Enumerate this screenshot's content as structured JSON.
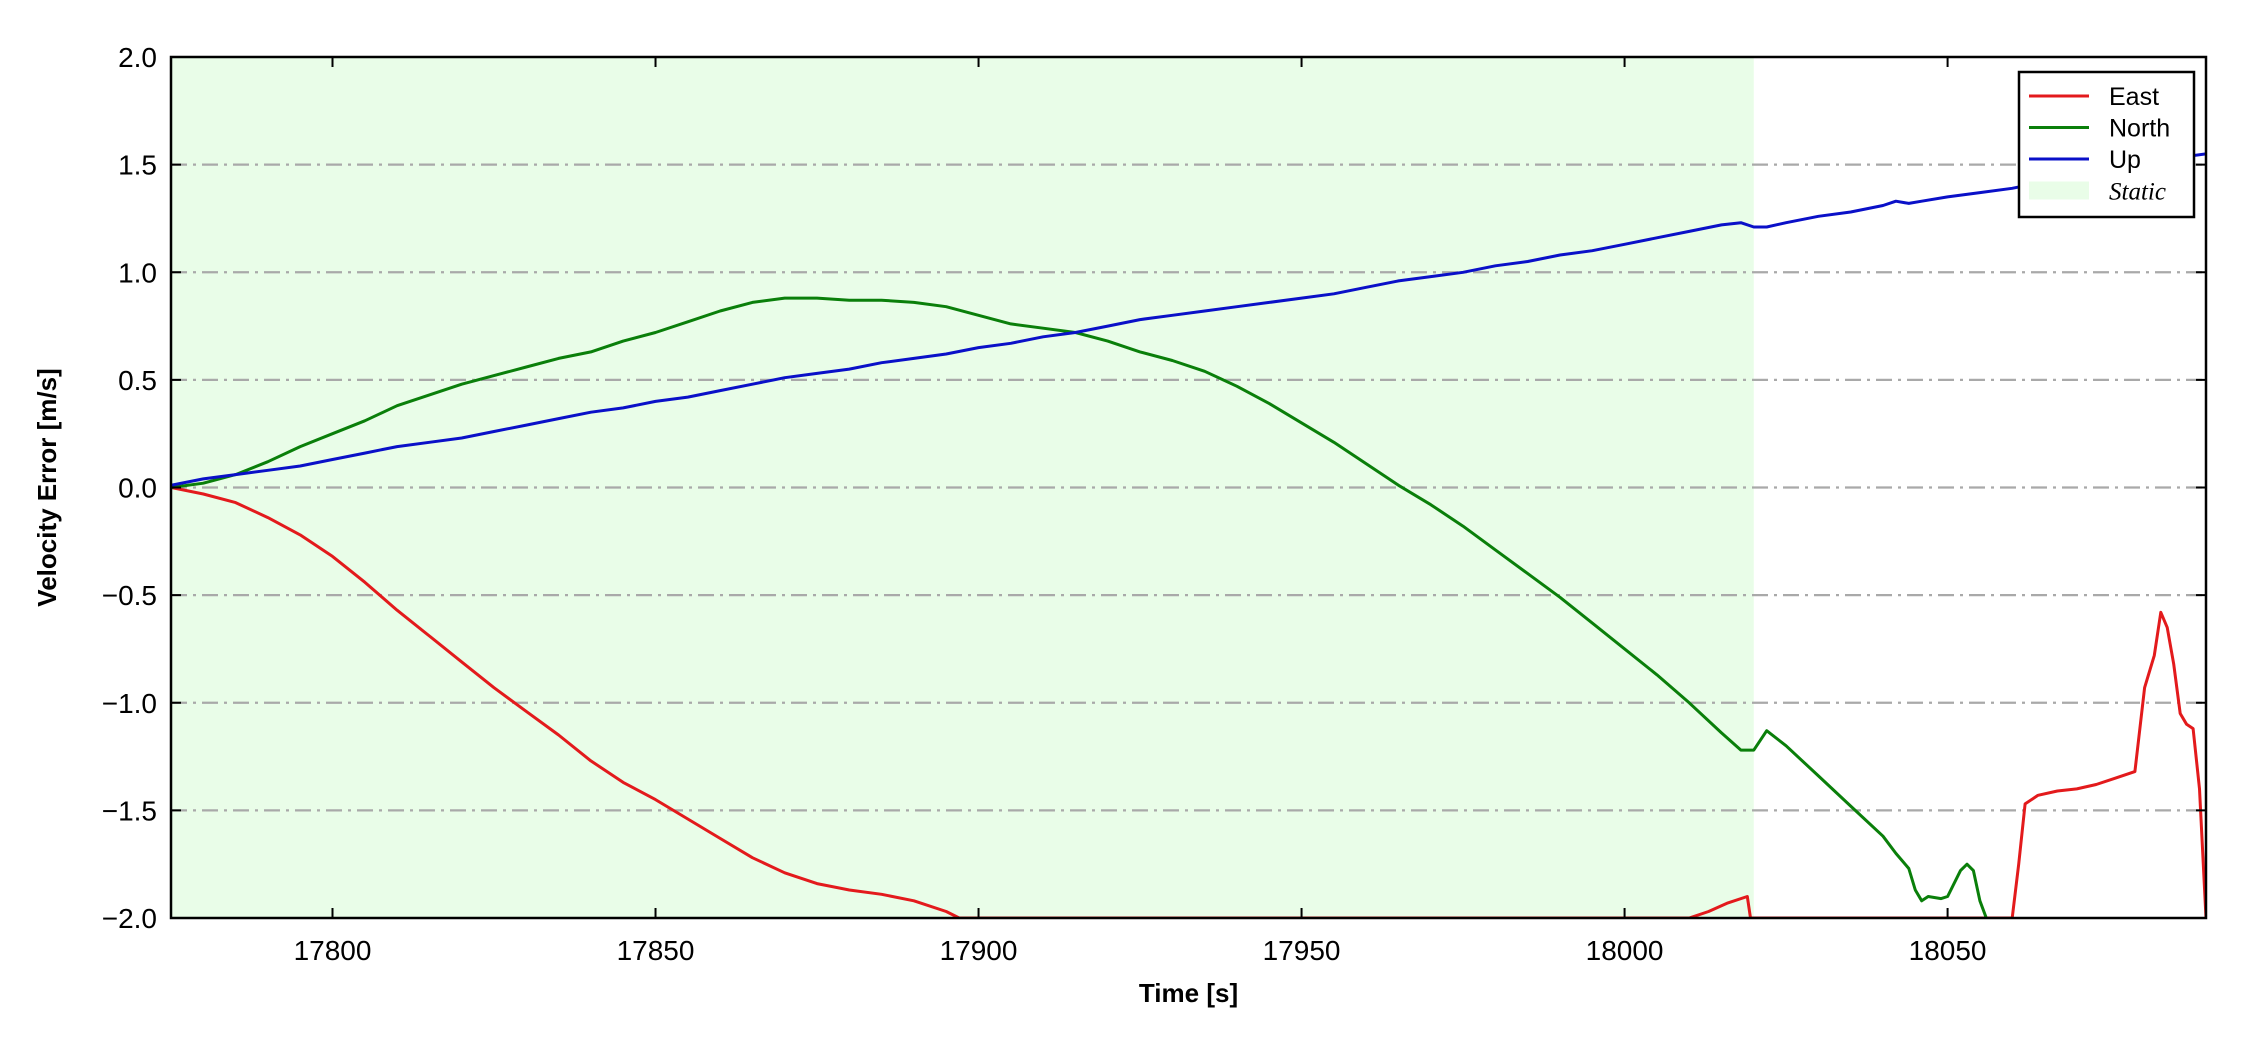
{
  "chart_data": {
    "type": "line",
    "title": "",
    "xlabel": "Time [s]",
    "ylabel": "Velocity Error [m/s]",
    "xlim": [
      17775,
      18090
    ],
    "ylim": [
      -2.0,
      2.0
    ],
    "xticks": [
      17800,
      17850,
      17900,
      17950,
      18000,
      18050
    ],
    "yticks": [
      -2.0,
      -1.5,
      -1.0,
      -0.5,
      0.0,
      0.5,
      1.0,
      1.5,
      2.0
    ],
    "ytick_labels": [
      "−2.0",
      "−1.5",
      "−1.0",
      "−0.5",
      "0.0",
      "0.5",
      "1.0",
      "1.5",
      "2.0"
    ],
    "grid": "horizontal dash-dot",
    "legend_position": "top-right",
    "static_region": {
      "label": "Static",
      "x_start": 17775,
      "x_end": 18020,
      "color": "#e9fde8"
    },
    "series": [
      {
        "name": "East",
        "color": "#e31a1c",
        "points": [
          [
            17775,
            0.0
          ],
          [
            17780,
            -0.03
          ],
          [
            17785,
            -0.07
          ],
          [
            17790,
            -0.14
          ],
          [
            17795,
            -0.22
          ],
          [
            17800,
            -0.32
          ],
          [
            17805,
            -0.44
          ],
          [
            17810,
            -0.57
          ],
          [
            17815,
            -0.69
          ],
          [
            17820,
            -0.81
          ],
          [
            17825,
            -0.93
          ],
          [
            17830,
            -1.04
          ],
          [
            17835,
            -1.15
          ],
          [
            17840,
            -1.27
          ],
          [
            17845,
            -1.37
          ],
          [
            17850,
            -1.45
          ],
          [
            17855,
            -1.54
          ],
          [
            17860,
            -1.63
          ],
          [
            17865,
            -1.72
          ],
          [
            17870,
            -1.79
          ],
          [
            17875,
            -1.84
          ],
          [
            17880,
            -1.87
          ],
          [
            17885,
            -1.89
          ],
          [
            17890,
            -1.92
          ],
          [
            17895,
            -1.97
          ],
          [
            17897,
            -2.0
          ],
          [
            18010,
            -2.0
          ],
          [
            18013,
            -1.97
          ],
          [
            18016,
            -1.93
          ],
          [
            18019,
            -1.9
          ],
          [
            18019.5,
            -2.0
          ],
          [
            18060,
            -2.0
          ],
          [
            18061,
            -1.75
          ],
          [
            18062,
            -1.47
          ],
          [
            18064,
            -1.43
          ],
          [
            18067,
            -1.41
          ],
          [
            18070,
            -1.4
          ],
          [
            18073,
            -1.38
          ],
          [
            18076,
            -1.35
          ],
          [
            18079,
            -1.32
          ],
          [
            18080.5,
            -0.93
          ],
          [
            18082,
            -0.78
          ],
          [
            18083,
            -0.58
          ],
          [
            18084,
            -0.65
          ],
          [
            18085,
            -0.82
          ],
          [
            18086,
            -1.05
          ],
          [
            18087,
            -1.1
          ],
          [
            18088,
            -1.12
          ],
          [
            18089,
            -1.4
          ],
          [
            18090,
            -2.0
          ]
        ]
      },
      {
        "name": "North",
        "color": "#0a7f0a",
        "points": [
          [
            17775,
            0.0
          ],
          [
            17780,
            0.02
          ],
          [
            17785,
            0.06
          ],
          [
            17790,
            0.12
          ],
          [
            17795,
            0.19
          ],
          [
            17800,
            0.25
          ],
          [
            17805,
            0.31
          ],
          [
            17810,
            0.38
          ],
          [
            17815,
            0.43
          ],
          [
            17820,
            0.48
          ],
          [
            17825,
            0.52
          ],
          [
            17830,
            0.56
          ],
          [
            17835,
            0.6
          ],
          [
            17840,
            0.63
          ],
          [
            17845,
            0.68
          ],
          [
            17850,
            0.72
          ],
          [
            17855,
            0.77
          ],
          [
            17860,
            0.82
          ],
          [
            17865,
            0.86
          ],
          [
            17870,
            0.88
          ],
          [
            17875,
            0.88
          ],
          [
            17880,
            0.87
          ],
          [
            17885,
            0.87
          ],
          [
            17890,
            0.86
          ],
          [
            17895,
            0.84
          ],
          [
            17900,
            0.8
          ],
          [
            17905,
            0.76
          ],
          [
            17910,
            0.74
          ],
          [
            17915,
            0.72
          ],
          [
            17920,
            0.68
          ],
          [
            17925,
            0.63
          ],
          [
            17930,
            0.59
          ],
          [
            17935,
            0.54
          ],
          [
            17940,
            0.47
          ],
          [
            17945,
            0.39
          ],
          [
            17950,
            0.3
          ],
          [
            17955,
            0.21
          ],
          [
            17960,
            0.11
          ],
          [
            17965,
            0.01
          ],
          [
            17970,
            -0.08
          ],
          [
            17975,
            -0.18
          ],
          [
            17980,
            -0.29
          ],
          [
            17985,
            -0.4
          ],
          [
            17990,
            -0.51
          ],
          [
            17995,
            -0.63
          ],
          [
            18000,
            -0.75
          ],
          [
            18005,
            -0.87
          ],
          [
            18010,
            -1.0
          ],
          [
            18015,
            -1.14
          ],
          [
            18018,
            -1.22
          ],
          [
            18020,
            -1.22
          ],
          [
            18022,
            -1.13
          ],
          [
            18025,
            -1.2
          ],
          [
            18030,
            -1.34
          ],
          [
            18035,
            -1.48
          ],
          [
            18040,
            -1.62
          ],
          [
            18042,
            -1.7
          ],
          [
            18044,
            -1.77
          ],
          [
            18045,
            -1.87
          ],
          [
            18046,
            -1.92
          ],
          [
            18047,
            -1.9
          ],
          [
            18049,
            -1.91
          ],
          [
            18050,
            -1.9
          ],
          [
            18052,
            -1.78
          ],
          [
            18053,
            -1.75
          ],
          [
            18054,
            -1.78
          ],
          [
            18055,
            -1.92
          ],
          [
            18056,
            -2.0
          ]
        ]
      },
      {
        "name": "Up",
        "color": "#0a10c8",
        "points": [
          [
            17775,
            0.01
          ],
          [
            17780,
            0.04
          ],
          [
            17785,
            0.06
          ],
          [
            17790,
            0.08
          ],
          [
            17795,
            0.1
          ],
          [
            17800,
            0.13
          ],
          [
            17805,
            0.16
          ],
          [
            17810,
            0.19
          ],
          [
            17815,
            0.21
          ],
          [
            17820,
            0.23
          ],
          [
            17825,
            0.26
          ],
          [
            17830,
            0.29
          ],
          [
            17835,
            0.32
          ],
          [
            17840,
            0.35
          ],
          [
            17845,
            0.37
          ],
          [
            17850,
            0.4
          ],
          [
            17855,
            0.42
          ],
          [
            17860,
            0.45
          ],
          [
            17865,
            0.48
          ],
          [
            17870,
            0.51
          ],
          [
            17875,
            0.53
          ],
          [
            17880,
            0.55
          ],
          [
            17885,
            0.58
          ],
          [
            17890,
            0.6
          ],
          [
            17895,
            0.62
          ],
          [
            17900,
            0.65
          ],
          [
            17905,
            0.67
          ],
          [
            17910,
            0.7
          ],
          [
            17915,
            0.72
          ],
          [
            17920,
            0.75
          ],
          [
            17925,
            0.78
          ],
          [
            17930,
            0.8
          ],
          [
            17935,
            0.82
          ],
          [
            17940,
            0.84
          ],
          [
            17945,
            0.86
          ],
          [
            17950,
            0.88
          ],
          [
            17955,
            0.9
          ],
          [
            17960,
            0.93
          ],
          [
            17965,
            0.96
          ],
          [
            17970,
            0.98
          ],
          [
            17975,
            1.0
          ],
          [
            17980,
            1.03
          ],
          [
            17985,
            1.05
          ],
          [
            17990,
            1.08
          ],
          [
            17995,
            1.1
          ],
          [
            18000,
            1.13
          ],
          [
            18005,
            1.16
          ],
          [
            18010,
            1.19
          ],
          [
            18015,
            1.22
          ],
          [
            18018,
            1.23
          ],
          [
            18020,
            1.21
          ],
          [
            18022,
            1.21
          ],
          [
            18025,
            1.23
          ],
          [
            18030,
            1.26
          ],
          [
            18035,
            1.28
          ],
          [
            18040,
            1.31
          ],
          [
            18042,
            1.33
          ],
          [
            18044,
            1.32
          ],
          [
            18046,
            1.33
          ],
          [
            18050,
            1.35
          ],
          [
            18055,
            1.37
          ],
          [
            18060,
            1.39
          ],
          [
            18065,
            1.42
          ],
          [
            18070,
            1.46
          ],
          [
            18075,
            1.49
          ],
          [
            18080,
            1.51
          ],
          [
            18085,
            1.53
          ],
          [
            18090,
            1.55
          ]
        ]
      }
    ]
  }
}
